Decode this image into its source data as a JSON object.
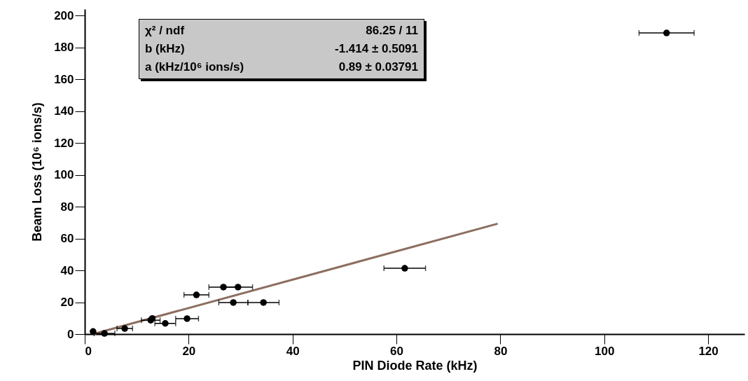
{
  "chart_data": {
    "type": "scatter",
    "xlabel": "PIN Diode Rate (kHz)",
    "ylabel": "Beam Loss (10⁶ ions/s)",
    "xlim": [
      0,
      127
    ],
    "ylim": [
      0,
      204
    ],
    "xticks": [
      0,
      20,
      40,
      60,
      80,
      100,
      120
    ],
    "yticks": [
      0,
      20,
      40,
      60,
      80,
      100,
      120,
      140,
      160,
      180,
      200
    ],
    "annotations": [
      "χ² / ndf",
      "86.25 / 11",
      "b (kHz)",
      "-1.414 ± 0.5091",
      "a (kHz/10⁶ ions/s)",
      "0.89 ± 0.03791"
    ],
    "series": [
      {
        "color": "#000000",
        "marker": "circle",
        "x": [
          1.6,
          3.8,
          7.7,
          12.7,
          13.0,
          15.5,
          19.7,
          21.5,
          26.7,
          29.5,
          28.6,
          34.4,
          61.6,
          112
        ],
        "values": [
          1.6,
          0.4,
          3.5,
          8.7,
          9.8,
          6.7,
          9.7,
          24.6,
          29.5,
          29.5,
          19.8,
          19.8,
          41.3,
          189
        ],
        "xerrors": [
          null,
          2,
          1.5,
          1.8,
          null,
          2,
          2.2,
          2.4,
          2.8,
          2.8,
          2.8,
          3,
          4,
          5.3
        ]
      },
      {
        "type": "line",
        "color": "#8c6e5f",
        "x": [
          1.6,
          79.5
        ],
        "values": [
          0,
          69.3
        ]
      }
    ]
  }
}
